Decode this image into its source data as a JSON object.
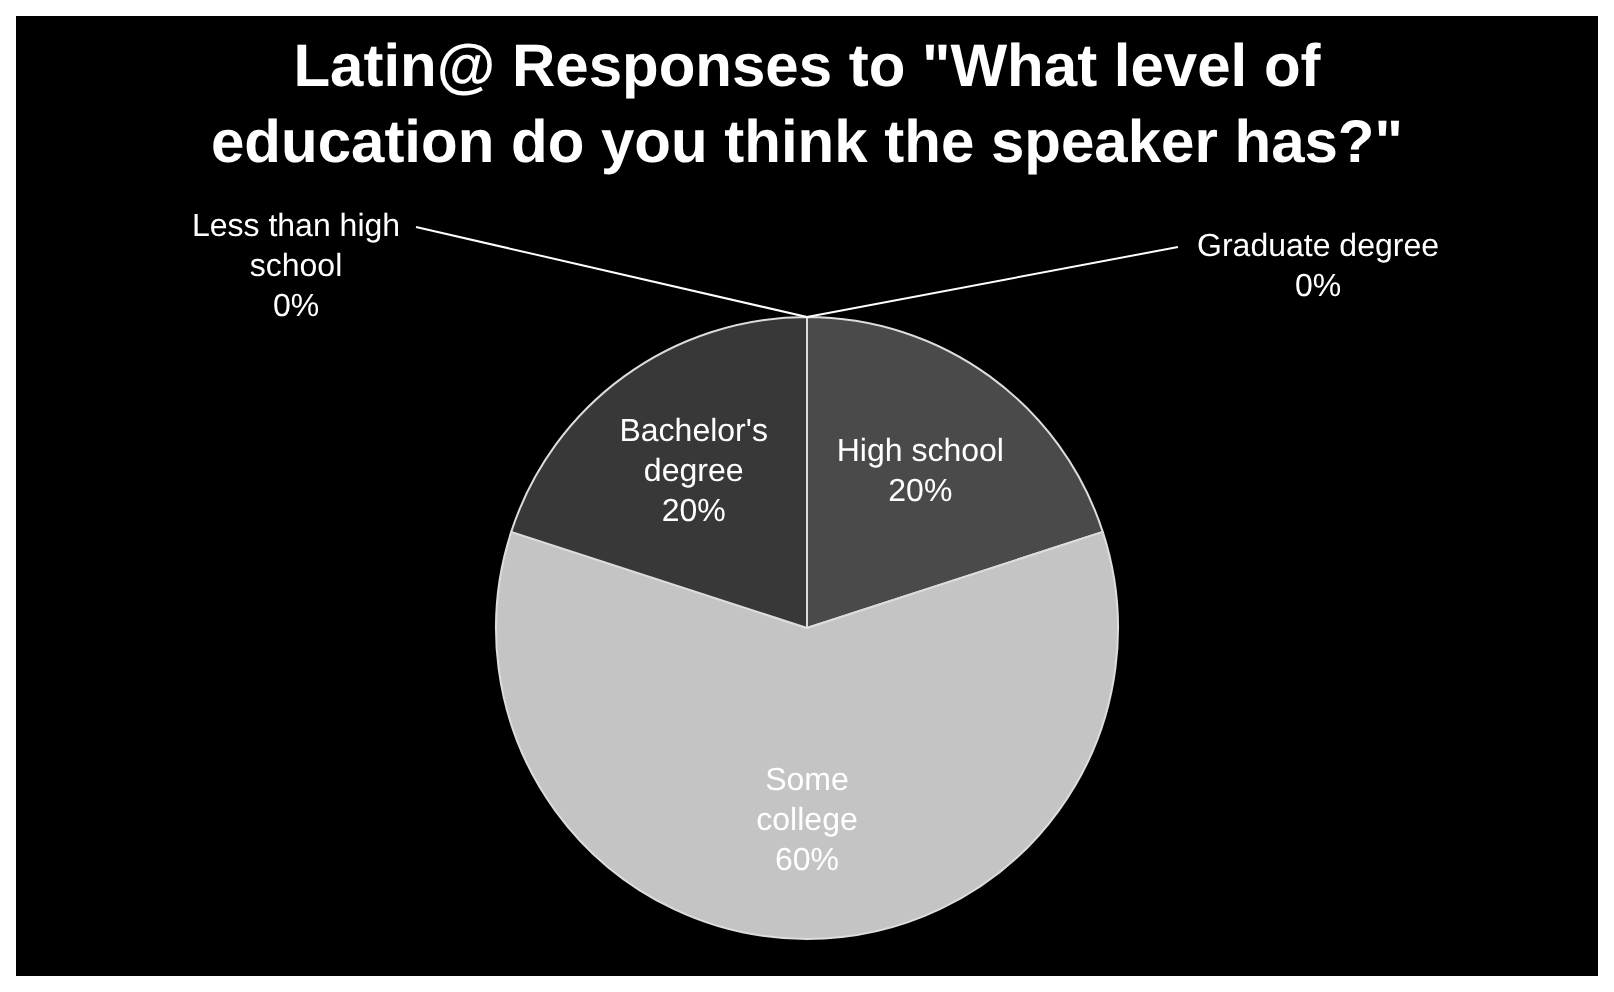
{
  "chart_data": {
    "type": "pie",
    "title": "Latin@ Responses to \"What level of education do you think the speaker has?\"",
    "categories": [
      "Less than high school",
      "High school",
      "Some college",
      "Bachelor's degree",
      "Graduate degree"
    ],
    "values": [
      0,
      20,
      60,
      20,
      0
    ],
    "colors": [
      "#2a2a2a",
      "#4a4a4a",
      "#c4c4c4",
      "#383838",
      "#5a5a5a"
    ],
    "value_labels": [
      "0%",
      "20%",
      "60%",
      "20%",
      "0%"
    ],
    "legend": false
  }
}
